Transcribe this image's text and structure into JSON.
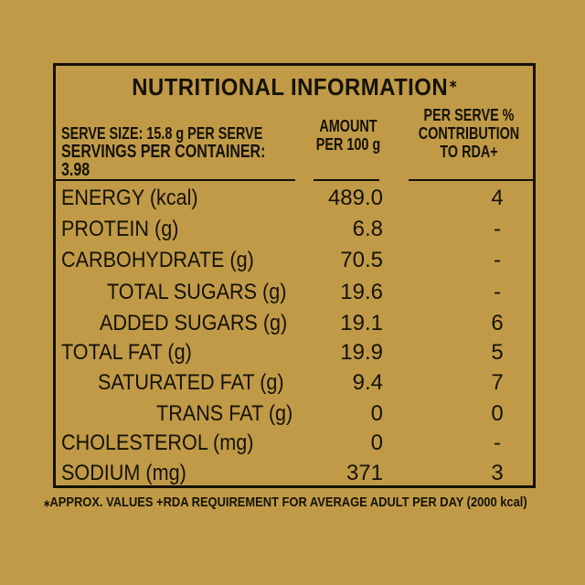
{
  "title": "NUTRITIONAL INFORMATION",
  "title_mark": "⁎",
  "header": {
    "serve_size": "SERVE SIZE: 15.8 g PER SERVE",
    "servings": "SERVINGS PER CONTAINER: 3.98",
    "amount_line1": "AMOUNT",
    "amount_line2": "PER 100 g",
    "rda_line1": "PER SERVE %",
    "rda_line2": "CONTRIBUTION",
    "rda_line3": "TO RDA+"
  },
  "rows": [
    {
      "label": "ENERGY (kcal)",
      "amount": "489.0",
      "rda": "4"
    },
    {
      "label": "PROTEIN (g)",
      "amount": "6.8",
      "rda": "-"
    },
    {
      "label": "CARBOHYDRATE (g)",
      "amount": "70.5",
      "rda": "-"
    },
    {
      "label": "TOTAL SUGARS (g)",
      "amount": "19.6",
      "rda": "-"
    },
    {
      "label": "ADDED SUGARS (g)",
      "amount": "19.1",
      "rda": "6"
    },
    {
      "label": "TOTAL FAT (g)",
      "amount": "19.9",
      "rda": "5"
    },
    {
      "label": "SATURATED FAT (g)",
      "amount": "9.4",
      "rda": "7"
    },
    {
      "label": "TRANS FAT (g)",
      "amount": "0",
      "rda": "0"
    },
    {
      "label": "CHOLESTEROL (mg)",
      "amount": "0",
      "rda": "-"
    },
    {
      "label": "SODIUM (mg)",
      "amount": "371",
      "rda": "3"
    }
  ],
  "footnote": "⁎APPROX. VALUES  +RDA REQUIREMENT FOR AVERAGE ADULT PER DAY (2000 kcal)"
}
